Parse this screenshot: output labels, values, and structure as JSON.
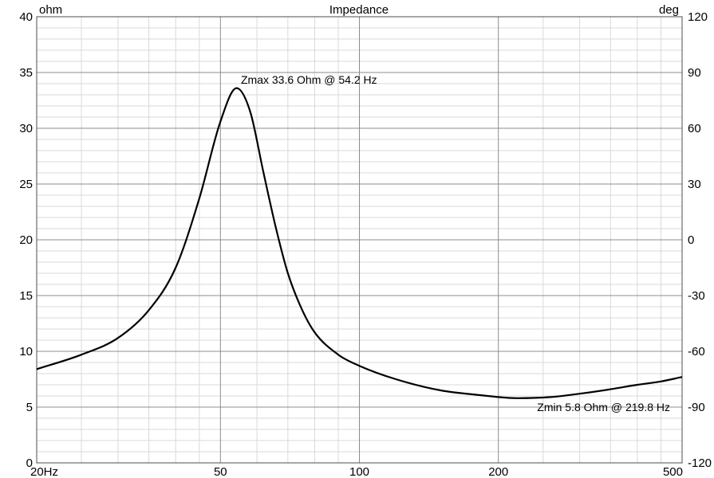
{
  "chart_data": {
    "type": "line",
    "title": "Impedance",
    "ylabel_left": "ohm",
    "ylabel_right": "deg",
    "x_scale": "log",
    "xlim": [
      20,
      500
    ],
    "ylim_left": [
      0,
      40
    ],
    "ylim_right": [
      -120,
      120
    ],
    "x_ticks": [
      {
        "value": 20,
        "label": "20Hz"
      },
      {
        "value": 50,
        "label": "50"
      },
      {
        "value": 100,
        "label": "100"
      },
      {
        "value": 200,
        "label": "200"
      },
      {
        "value": 500,
        "label": "500"
      }
    ],
    "y_ticks_left": [
      0,
      5,
      10,
      15,
      20,
      25,
      30,
      35,
      40
    ],
    "y_tick_labels_left": [
      "0",
      "5",
      "10",
      "15",
      "20",
      "25",
      "30",
      "35",
      "40"
    ],
    "y_ticks_right": [
      -120,
      -90,
      -60,
      -30,
      0,
      30,
      60,
      90,
      120
    ],
    "y_tick_labels_right": [
      "-120",
      "-90",
      "-60",
      "-30",
      "0",
      "30",
      "60",
      "90",
      "120"
    ],
    "grid": true,
    "legend": "none",
    "series": [
      {
        "color": "#000000",
        "x": [
          20,
          25,
          30,
          35,
          40,
          45,
          50,
          54.2,
          58,
          62,
          66,
          70,
          75,
          80,
          90,
          100,
          120,
          150,
          180,
          219.8,
          260,
          300,
          350,
          400,
          450,
          500
        ],
        "y": [
          8.4,
          9.7,
          11.2,
          13.7,
          17.5,
          23.7,
          30.6,
          33.6,
          31.5,
          26.0,
          21.0,
          17.0,
          13.8,
          11.7,
          9.7,
          8.7,
          7.5,
          6.5,
          6.1,
          5.8,
          5.9,
          6.2,
          6.6,
          7.0,
          7.3,
          7.7
        ]
      }
    ],
    "annotations": [
      {
        "text": "Zmax 33.6 Ohm @ 54.2 Hz",
        "x": 54.2,
        "y": 33.6
      },
      {
        "text": "Zmin 5.8 Ohm @ 219.8 Hz",
        "x": 219.8,
        "y": 5.8
      }
    ]
  }
}
